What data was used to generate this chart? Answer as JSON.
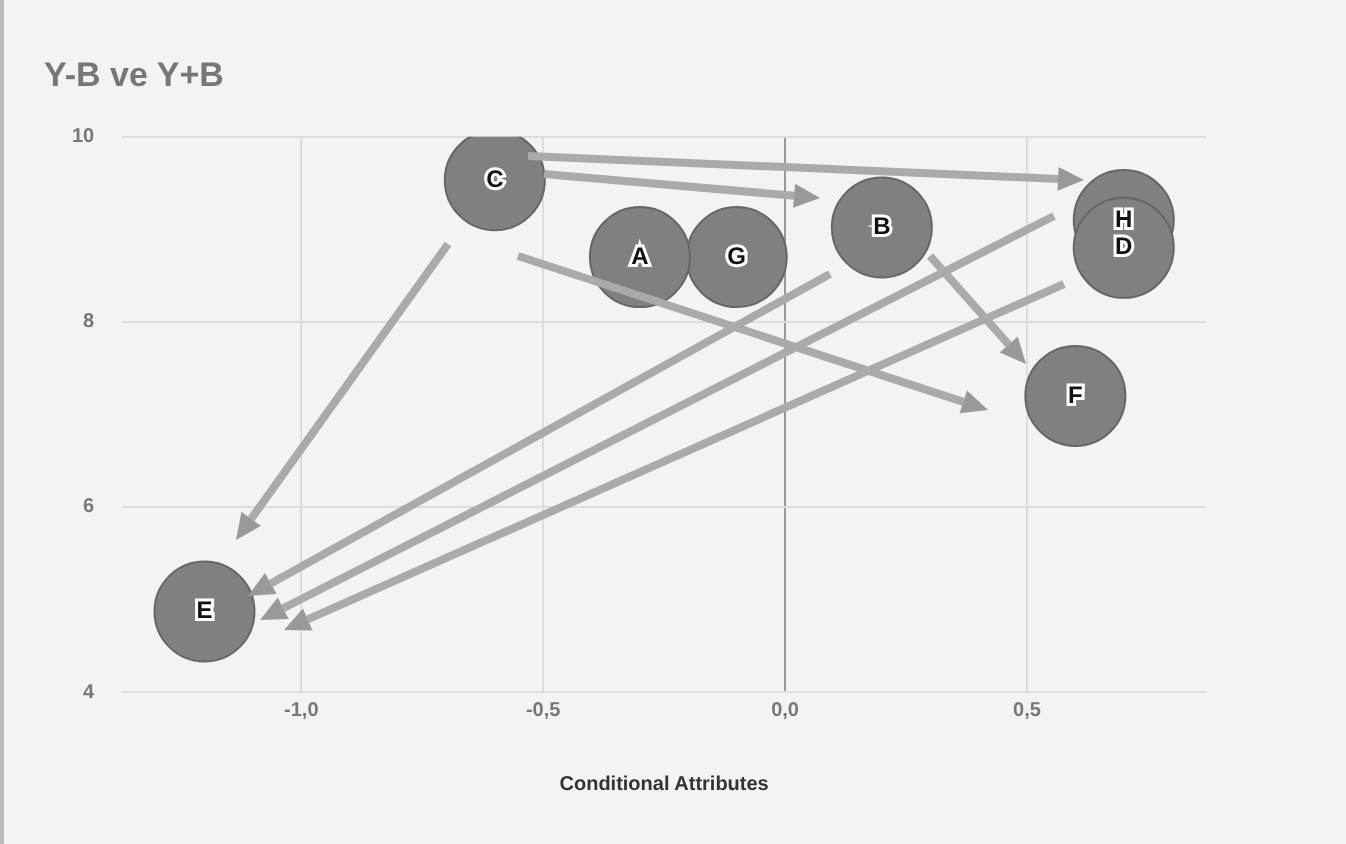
{
  "chart_data": {
    "type": "bubble",
    "title": "Y-B ve Y+B",
    "xlabel": "Conditional Attributes",
    "xlim": [
      -1.37,
      0.87
    ],
    "xticks": [
      {
        "value": -1,
        "label": "-1,0"
      },
      {
        "value": -0.5,
        "label": "-0,5"
      },
      {
        "value": 0,
        "label": "0,0"
      },
      {
        "value": 0.5,
        "label": "0,5"
      }
    ],
    "ylim": [
      4,
      10
    ],
    "yticks": [
      4,
      6,
      8,
      10
    ],
    "grid": true,
    "legend": false,
    "series": [
      {
        "name": "C",
        "color": "#808080",
        "x": [
          -0.6
        ],
        "values": [
          9.53
        ],
        "sizes": [
          1
        ]
      },
      {
        "name": "A",
        "color": "#808080",
        "x": [
          -0.3
        ],
        "values": [
          8.7
        ],
        "sizes": [
          1
        ]
      },
      {
        "name": "G",
        "color": "#808080",
        "x": [
          -0.1
        ],
        "values": [
          8.7
        ],
        "sizes": [
          1
        ]
      },
      {
        "name": "B",
        "color": "#808080",
        "x": [
          0.2
        ],
        "values": [
          9.02
        ],
        "sizes": [
          1
        ]
      },
      {
        "name": "D",
        "color": "#808080",
        "x": [
          0.7
        ],
        "values": [
          8.8
        ],
        "sizes": [
          1
        ]
      },
      {
        "name": "H",
        "color": "#808080",
        "x": [
          0.7
        ],
        "values": [
          9.1
        ],
        "sizes": [
          1
        ]
      },
      {
        "name": "F",
        "color": "#808080",
        "x": [
          0.6
        ],
        "values": [
          7.2
        ],
        "sizes": [
          1
        ]
      },
      {
        "name": "E",
        "color": "#808080",
        "x": [
          -1.2
        ],
        "values": [
          4.87
        ],
        "sizes": [
          1
        ]
      }
    ]
  }
}
